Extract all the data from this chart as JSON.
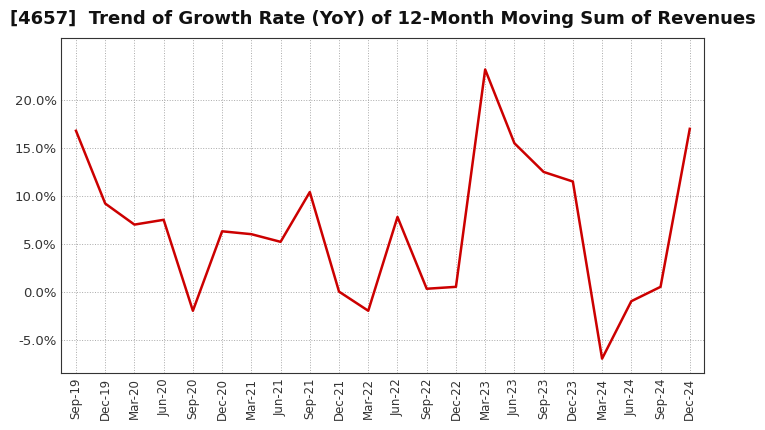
{
  "title": "[4657]  Trend of Growth Rate (YoY) of 12-Month Moving Sum of Revenues",
  "title_fontsize": 13,
  "line_color": "#cc0000",
  "background_color": "#ffffff",
  "plot_bg_color": "#ffffff",
  "ylim": [
    -0.085,
    0.265
  ],
  "yticks": [
    -0.05,
    0.0,
    0.05,
    0.1,
    0.15,
    0.2
  ],
  "xlabels": [
    "Sep-19",
    "Dec-19",
    "Mar-20",
    "Jun-20",
    "Sep-20",
    "Dec-20",
    "Mar-21",
    "Jun-21",
    "Sep-21",
    "Dec-21",
    "Mar-22",
    "Jun-22",
    "Sep-22",
    "Dec-22",
    "Mar-23",
    "Jun-23",
    "Sep-23",
    "Dec-23",
    "Mar-24",
    "Jun-24",
    "Sep-24",
    "Dec-24"
  ],
  "values": [
    0.168,
    0.092,
    0.07,
    0.075,
    -0.02,
    0.063,
    0.06,
    0.052,
    0.104,
    0.0,
    -0.02,
    0.078,
    0.003,
    0.005,
    0.232,
    0.155,
    0.125,
    0.115,
    -0.07,
    -0.01,
    0.005,
    0.17
  ]
}
